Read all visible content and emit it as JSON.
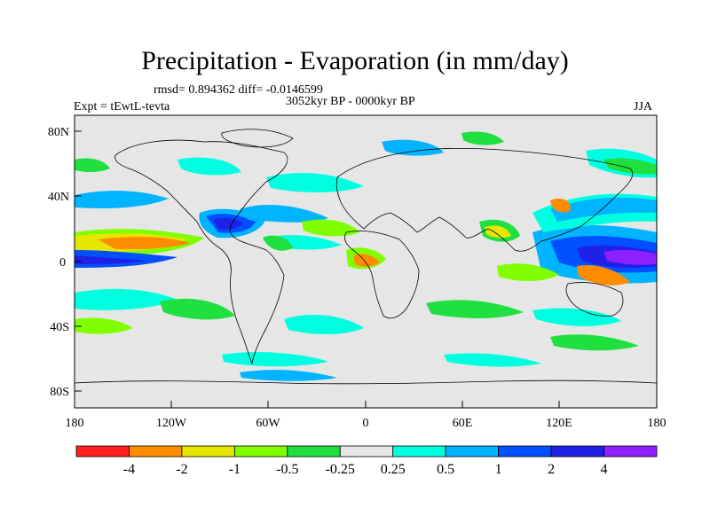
{
  "title": "Precipitation - Evaporation (in mm/day)",
  "stats": "rmsd= 0.894362 diff= -0.0146599",
  "period": "3052kyr BP - 0000kyr BP",
  "experiment": "Expt = tEwtL-tevta",
  "season": "JJA",
  "axes": {
    "y_ticks": [
      "80N",
      "40N",
      "0",
      "40S",
      "80S"
    ],
    "x_ticks": [
      "180",
      "120W",
      "60W",
      "0",
      "60E",
      "120E",
      "180"
    ]
  },
  "colorbar": {
    "colors": [
      "#ff2020",
      "#ff8c00",
      "#e6e600",
      "#80ff00",
      "#20e040",
      "#e6e6e6",
      "#00ffe0",
      "#00b4ff",
      "#0050ff",
      "#2020e6",
      "#8c20ff"
    ],
    "labels": [
      "-4",
      "-2",
      "-1",
      "-0.5",
      "-0.25",
      "0.25",
      "0.5",
      "1",
      "2",
      "4"
    ]
  },
  "colors": {
    "ocean_background": "#e6e6e6",
    "coastline": "#000000"
  }
}
